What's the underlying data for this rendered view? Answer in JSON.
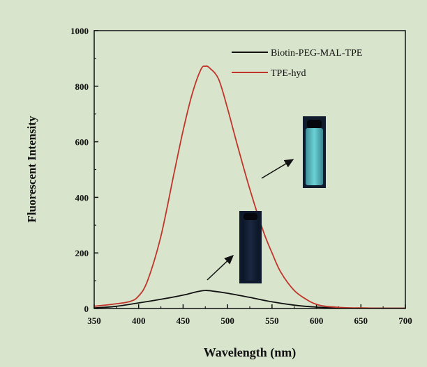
{
  "chart_data": {
    "type": "line",
    "xlabel": "Wavelength (nm)",
    "ylabel": "Fluorescent Intensity",
    "xlim": [
      350,
      700
    ],
    "ylim": [
      0,
      1000
    ],
    "xticks": [
      "350",
      "400",
      "450",
      "500",
      "550",
      "600",
      "650",
      "700"
    ],
    "yticks": [
      "0",
      "200",
      "400",
      "600",
      "800",
      "1000"
    ],
    "legend_position": "top-right",
    "series": [
      {
        "name": "Biotin-PEG-MAL-TPE",
        "color": "#111111",
        "x": [
          350,
          375,
          400,
          425,
          450,
          465,
          475,
          485,
          500,
          525,
          550,
          575,
          600,
          625,
          650,
          700
        ],
        "y": [
          2,
          8,
          20,
          33,
          48,
          60,
          65,
          62,
          55,
          40,
          24,
          12,
          5,
          2,
          1,
          1
        ]
      },
      {
        "name": "TPE-hyd",
        "color": "#c0342a",
        "x": [
          350,
          370,
          390,
          400,
          410,
          425,
          440,
          450,
          460,
          470,
          475,
          480,
          490,
          500,
          510,
          525,
          540,
          550,
          560,
          575,
          590,
          600,
          610,
          625,
          640,
          650,
          675,
          700
        ],
        "y": [
          8,
          15,
          25,
          45,
          100,
          260,
          490,
          640,
          770,
          860,
          872,
          865,
          825,
          720,
          600,
          430,
          280,
          200,
          130,
          65,
          30,
          15,
          8,
          4,
          2,
          2,
          1,
          1
        ]
      }
    ],
    "annotations": [
      {
        "type": "inset-image",
        "description": "vial-cyan-fluorescence",
        "target_series": "TPE-hyd"
      },
      {
        "type": "inset-image",
        "description": "vial-dark-no-fluorescence",
        "target_series": "Biotin-PEG-MAL-TPE"
      }
    ]
  }
}
